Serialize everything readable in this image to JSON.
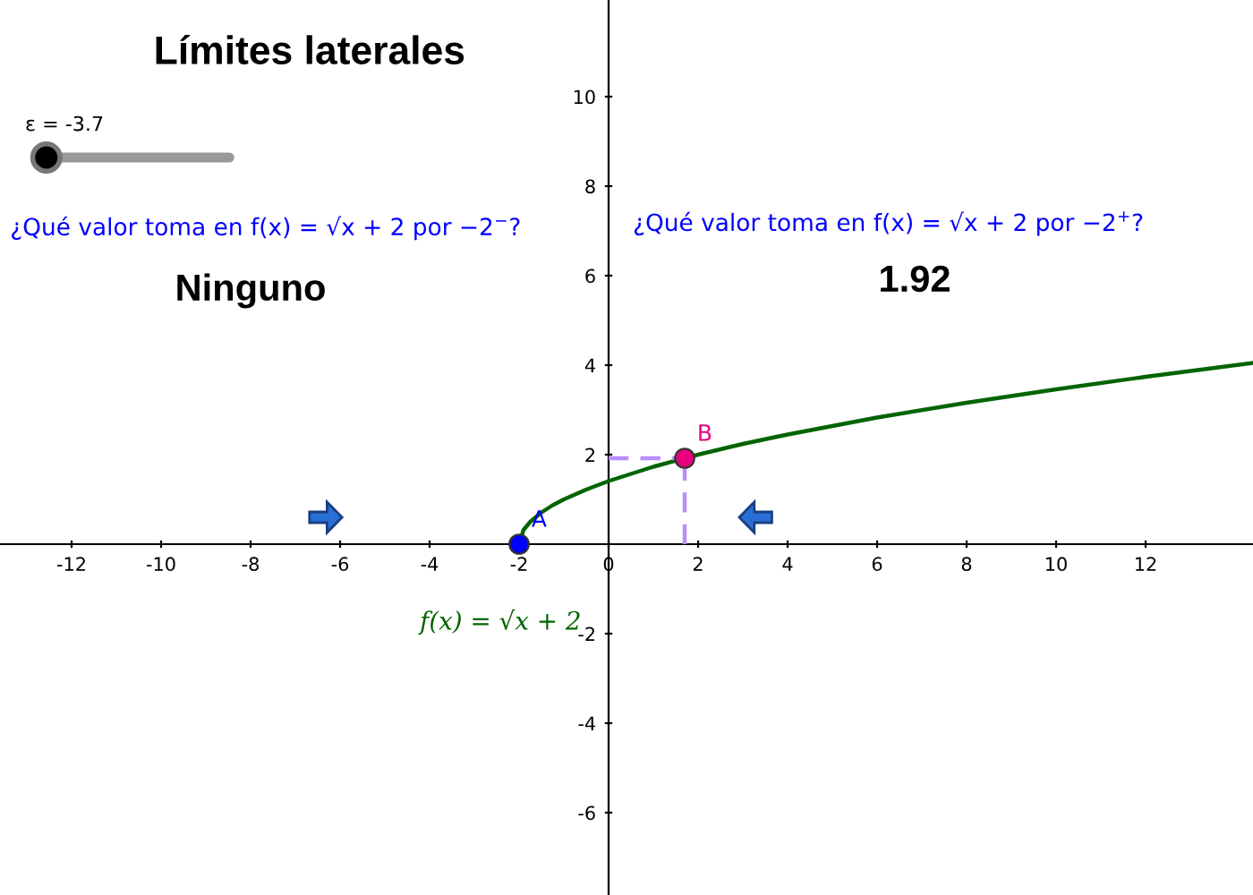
{
  "chart_data": {
    "type": "line",
    "title": "Límites laterales",
    "xlim": [
      -13.6,
      14.4
    ],
    "ylim": [
      -7.84,
      12.16
    ],
    "xticks": [
      -12,
      -10,
      -8,
      -6,
      -4,
      -2,
      0,
      2,
      4,
      6,
      8,
      10,
      12
    ],
    "yticks": [
      -6,
      -4,
      -2,
      2,
      4,
      6,
      8,
      10
    ],
    "grid": false,
    "legend": false,
    "series": [
      {
        "color": "#006400",
        "line_style": "solid",
        "marker": "none",
        "x": [
          -2,
          -1.9,
          -1.75,
          -1.5,
          -1.25,
          -1,
          -0.5,
          0,
          1,
          2,
          3,
          4,
          6,
          8,
          10,
          12,
          14.4
        ],
        "values": [
          0,
          0.32,
          0.5,
          0.71,
          0.87,
          1,
          1.22,
          1.41,
          1.73,
          2,
          2.24,
          2.45,
          2.83,
          3.16,
          3.46,
          3.74,
          4.05
        ]
      },
      {
        "type": "line",
        "color": "#b88cff",
        "line_style": "dashed",
        "marker": "none",
        "x": [
          0,
          1.7
        ],
        "values": [
          1.92,
          1.92
        ]
      },
      {
        "type": "line",
        "color": "#b88cff",
        "line_style": "dashed",
        "marker": "none",
        "x": [
          1.7,
          1.7
        ],
        "values": [
          0,
          1.92
        ]
      },
      {
        "type": "scatter",
        "name": "A",
        "color": "#0000ff",
        "marker": "circle",
        "x": [
          -2
        ],
        "values": [
          0
        ]
      },
      {
        "type": "scatter",
        "name": "B",
        "color": "#e6007e",
        "marker": "circle",
        "x": [
          1.7
        ],
        "values": [
          1.92
        ]
      }
    ],
    "annotations": [
      "ε = -3.7",
      "¿Qué valor toma en f(x) = √x + 2 por −2$^{−}$?",
      "Ninguno",
      "¿Qué valor toma en f(x) = √x + 2 por −2$^{+}$?",
      "1.92",
      "f(x) = √x + 2"
    ]
  }
}
